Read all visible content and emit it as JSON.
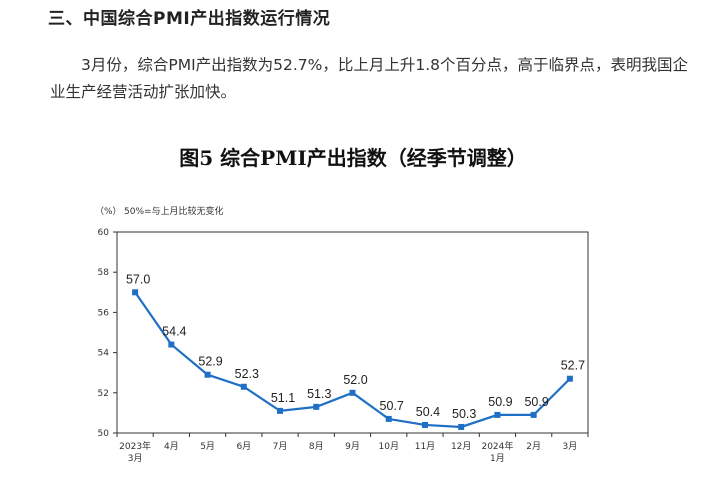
{
  "section": {
    "heading": "三、中国综合PMI产出指数运行情况",
    "paragraph": "3月份，综合PMI产出指数为52.7%，比上月上升1.8个百分点，高于临界点，表明我国企业生产经营活动扩张加快。"
  },
  "chart_data": {
    "type": "line",
    "title": "图5  综合PMI产出指数（经季节调整）",
    "ylabel": "（%）",
    "note": "50%=与上月比较无变化",
    "ylim": [
      50,
      60
    ],
    "yticks": [
      50,
      52,
      54,
      56,
      58,
      60
    ],
    "categories": [
      [
        "2023年",
        "3月"
      ],
      [
        "4月"
      ],
      [
        "5月"
      ],
      [
        "6月"
      ],
      [
        "7月"
      ],
      [
        "8月"
      ],
      [
        "9月"
      ],
      [
        "10月"
      ],
      [
        "11月"
      ],
      [
        "12月"
      ],
      [
        "2024年",
        "1月"
      ],
      [
        "2月"
      ],
      [
        "3月"
      ]
    ],
    "values": [
      57.0,
      54.4,
      52.9,
      52.3,
      51.1,
      51.3,
      52.0,
      50.7,
      50.4,
      50.3,
      50.9,
      50.9,
      52.7
    ],
    "value_labels": [
      "57.0",
      "54.4",
      "52.9",
      "52.3",
      "51.1",
      "51.3",
      "52.0",
      "50.7",
      "50.4",
      "50.3",
      "50.9",
      "50.9",
      "52.7"
    ],
    "grid": false,
    "line_color": "#1f6fc5",
    "marker_color": "#1f6fc5"
  }
}
